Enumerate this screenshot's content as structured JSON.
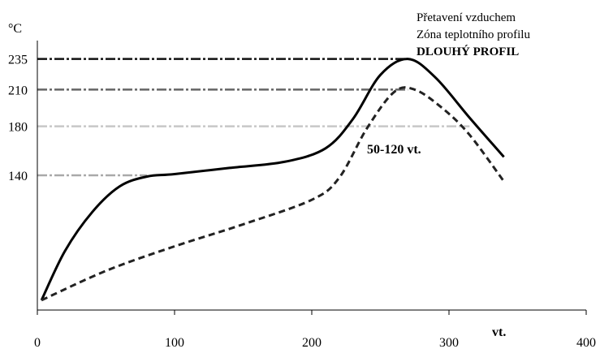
{
  "chart_data": {
    "type": "line",
    "title": "",
    "annotation_lines": [
      "Přetavení vzduchem",
      "Zóna teplotního profilu",
      "DLOUHÝ PROFIL"
    ],
    "y_unit_label": "°C",
    "x_unit_label": "vt.",
    "xlim": [
      0,
      400
    ],
    "ylim": [
      30,
      250
    ],
    "x_ticks": [
      0,
      100,
      200,
      300,
      400
    ],
    "y_ticks": [
      140,
      180,
      210,
      235
    ],
    "reference_lines": [
      {
        "value": 235,
        "color": "#111111",
        "end_x": 270
      },
      {
        "value": 210,
        "color": "#666666",
        "end_x": 270
      },
      {
        "value": 180,
        "color": "#c8c8c8",
        "end_x": 315
      },
      {
        "value": 140,
        "color": "#a9a9a9",
        "end_x": 80
      }
    ],
    "zone_label": "50-120 vt.",
    "series": [
      {
        "style": "solid",
        "color": "#000000",
        "x": [
          3,
          20,
          40,
          60,
          80,
          100,
          140,
          180,
          210,
          230,
          250,
          270,
          290,
          315,
          340
        ],
        "y": [
          38,
          78,
          110,
          131,
          139,
          141,
          146,
          151,
          162,
          186,
          222,
          235,
          220,
          187,
          155
        ]
      },
      {
        "style": "dashed",
        "color": "#222222",
        "x": [
          3,
          50,
          100,
          150,
          200,
          220,
          240,
          260,
          275,
          295,
          315,
          340
        ],
        "y": [
          38,
          62,
          82,
          100,
          120,
          138,
          178,
          208,
          210,
          195,
          173,
          135
        ]
      }
    ]
  }
}
